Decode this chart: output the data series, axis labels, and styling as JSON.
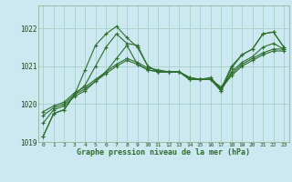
{
  "title": "Graphe pression niveau de la mer (hPa)",
  "bg_color": "#cce8f0",
  "grid_color": "#aad4cc",
  "line_color": "#2d6e2d",
  "xlim": [
    -0.5,
    23.5
  ],
  "ylim": [
    1019.0,
    1022.6
  ],
  "yticks": [
    1019,
    1020,
    1021,
    1022
  ],
  "xticks": [
    0,
    1,
    2,
    3,
    4,
    5,
    6,
    7,
    8,
    9,
    10,
    11,
    12,
    13,
    14,
    15,
    16,
    17,
    18,
    19,
    20,
    21,
    22,
    23
  ],
  "series": [
    [
      1019.15,
      1019.75,
      1019.85,
      1020.25,
      1020.9,
      1021.55,
      1021.85,
      1022.05,
      1021.75,
      1021.5,
      1021.0,
      1020.85,
      1020.85,
      1020.85,
      1020.65,
      1020.65,
      1020.65,
      1020.35,
      1020.95,
      1021.3,
      1021.45,
      1021.85,
      1021.9,
      1021.5
    ],
    [
      1019.15,
      1019.75,
      1019.85,
      1020.25,
      1020.5,
      1021.0,
      1021.5,
      1021.85,
      1021.6,
      1021.55,
      1021.0,
      1020.85,
      1020.85,
      1020.85,
      1020.65,
      1020.65,
      1020.7,
      1020.4,
      1021.0,
      1021.3,
      1021.45,
      1021.85,
      1021.9,
      1021.5
    ],
    [
      1019.5,
      1019.85,
      1019.95,
      1020.2,
      1020.35,
      1020.6,
      1020.85,
      1021.2,
      1021.55,
      1021.05,
      1020.9,
      1020.85,
      1020.85,
      1020.85,
      1020.65,
      1020.65,
      1020.65,
      1020.35,
      1020.85,
      1021.1,
      1021.25,
      1021.5,
      1021.6,
      1021.45
    ],
    [
      1019.7,
      1019.9,
      1020.0,
      1020.25,
      1020.4,
      1020.6,
      1020.8,
      1021.0,
      1021.15,
      1021.05,
      1020.9,
      1020.85,
      1020.85,
      1020.85,
      1020.7,
      1020.65,
      1020.65,
      1020.4,
      1020.75,
      1021.0,
      1021.15,
      1021.3,
      1021.4,
      1021.4
    ],
    [
      1019.8,
      1019.95,
      1020.05,
      1020.3,
      1020.45,
      1020.65,
      1020.85,
      1021.05,
      1021.2,
      1021.1,
      1020.95,
      1020.9,
      1020.85,
      1020.85,
      1020.7,
      1020.65,
      1020.65,
      1020.45,
      1020.8,
      1021.05,
      1021.2,
      1021.35,
      1021.45,
      1021.45
    ]
  ]
}
